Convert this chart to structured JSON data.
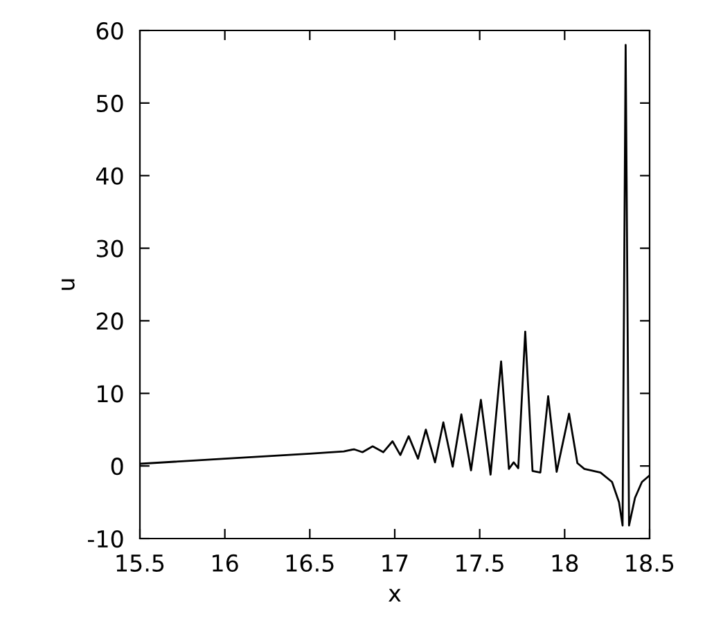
{
  "chart_data": {
    "type": "line",
    "xlabel": "x",
    "ylabel": "u",
    "xlim": [
      15.5,
      18.5
    ],
    "xticks": [
      15.5,
      16,
      16.5,
      17,
      17.5,
      18,
      18.5
    ],
    "ylim": [
      -10,
      60
    ],
    "yticks": [
      -10,
      0,
      10,
      20,
      30,
      40,
      50,
      60
    ],
    "grid": false,
    "legend": false,
    "marker": "none",
    "line_style": "solid",
    "series": [
      {
        "color": "#000000",
        "x": [
          15.5,
          16.0,
          16.5,
          16.7,
          16.76,
          16.81,
          16.87,
          16.933,
          16.987,
          17.033,
          17.082,
          17.137,
          17.183,
          17.237,
          17.286,
          17.341,
          17.392,
          17.449,
          17.507,
          17.564,
          17.626,
          17.672,
          17.7,
          17.727,
          17.768,
          17.811,
          17.857,
          17.903,
          17.953,
          18.026,
          18.075,
          18.116,
          18.211,
          18.279,
          18.32,
          18.341,
          18.359,
          18.379,
          18.414,
          18.455,
          18.5
        ],
        "values": [
          0.3,
          1.0,
          1.7,
          2.0,
          2.3,
          1.9,
          2.7,
          1.9,
          3.4,
          1.5,
          4.1,
          1.0,
          5.0,
          0.5,
          6.0,
          -0.1,
          7.1,
          -0.6,
          9.1,
          -1.2,
          14.4,
          -0.4,
          0.5,
          -0.3,
          18.5,
          -0.7,
          -0.9,
          9.6,
          -0.8,
          7.2,
          0.4,
          -0.4,
          -0.9,
          -2.2,
          -5.0,
          -8.2,
          58,
          -8.2,
          -4.4,
          -2.2,
          -1.3
        ]
      }
    ]
  }
}
